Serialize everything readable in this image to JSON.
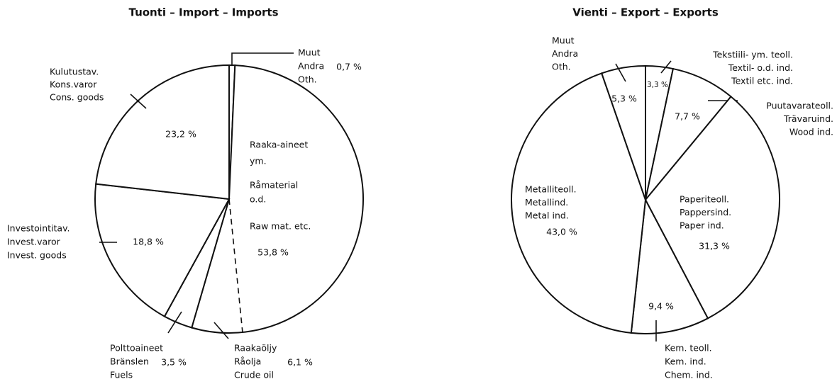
{
  "chart_data": [
    {
      "type": "pie",
      "title": "Tuonti – Import – Imports",
      "slices": [
        {
          "labels": [
            "Muut",
            "Andra",
            "Oth."
          ],
          "value": 0.7,
          "value_label": "0,7 %"
        },
        {
          "labels": [
            "Raaka-aineet",
            "ym.",
            "Råmaterial",
            "o.d.",
            "Raw mat. etc."
          ],
          "value": 53.8,
          "value_label": "53,8 %",
          "parts": [
            {
              "labels": [
                "Raakaöljy",
                "Råolja",
                "Crude oil"
              ],
              "value": 6.1,
              "value_label": "6,1 %"
            }
          ]
        },
        {
          "labels": [
            "Polttoaineet",
            "Bränslen",
            "Fuels"
          ],
          "value": 3.5,
          "value_label": "3,5 %"
        },
        {
          "labels": [
            "Investointitav.",
            "Invest.varor",
            "Invest. goods"
          ],
          "value": 18.8,
          "value_label": "18,8 %"
        },
        {
          "labels": [
            "Kulutustav.",
            "Kons.varor",
            "Cons. goods"
          ],
          "value": 23.2,
          "value_label": "23,2 %"
        }
      ]
    },
    {
      "type": "pie",
      "title": "Vienti – Export – Exports",
      "slices": [
        {
          "labels": [
            "Tekstiili- ym. teoll.",
            "Textil- o.d. ind.",
            "Textil etc. ind."
          ],
          "value": 3.3,
          "value_label": "3,3 %"
        },
        {
          "labels": [
            "Puutavarateoll.",
            "Trävaruind.",
            "Wood ind."
          ],
          "value": 7.7,
          "value_label": "7,7 %"
        },
        {
          "labels": [
            "Paperiteoll.",
            "Pappersind.",
            "Paper ind."
          ],
          "value": 31.3,
          "value_label": "31,3 %"
        },
        {
          "labels": [
            "Kem. teoll.",
            "Kem. ind.",
            "Chem. ind."
          ],
          "value": 9.4,
          "value_label": "9,4 %"
        },
        {
          "labels": [
            "Metalliteoll.",
            "Metallind.",
            "Metal ind."
          ],
          "value": 43.0,
          "value_label": "43,0 %"
        },
        {
          "labels": [
            "Muut",
            "Andra",
            "Oth."
          ],
          "value": 5.3,
          "value_label": "5,3 %"
        }
      ]
    }
  ]
}
